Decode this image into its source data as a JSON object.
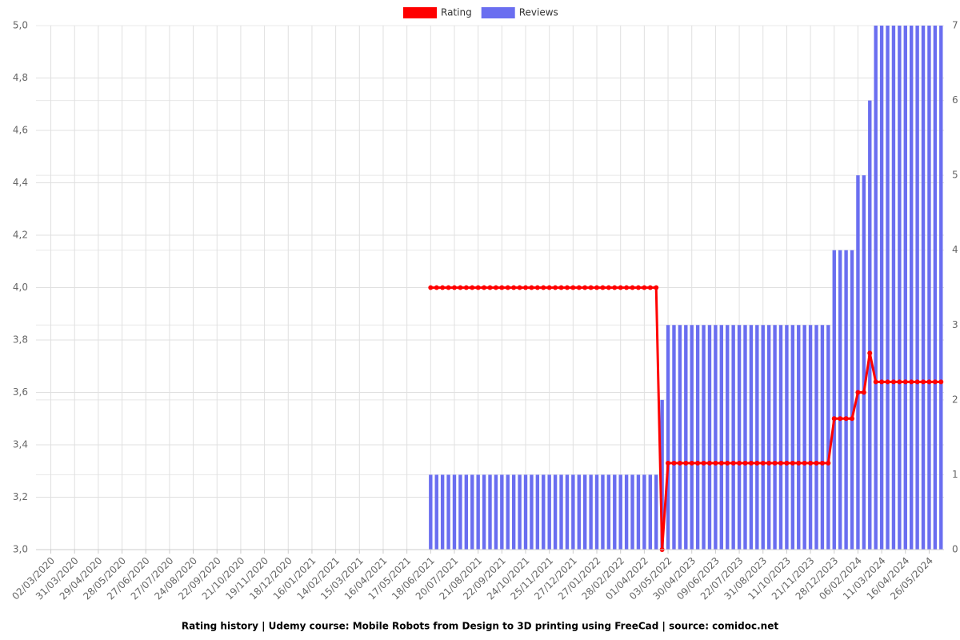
{
  "chart_data": {
    "type": "bar-line",
    "title": "Rating history | Udemy course: Mobile Robots from Design to 3D printing using FreeCad | source: comidoc.net",
    "categories": [
      null,
      null,
      "02/03/2020",
      null,
      null,
      null,
      "31/03/2020",
      null,
      null,
      null,
      "29/04/2020",
      null,
      null,
      null,
      "28/05/2020",
      null,
      null,
      null,
      "27/06/2020",
      null,
      null,
      null,
      "27/07/2020",
      null,
      null,
      null,
      "24/08/2020",
      null,
      null,
      null,
      "22/09/2020",
      null,
      null,
      null,
      "21/10/2020",
      null,
      null,
      null,
      "19/11/2020",
      null,
      null,
      null,
      "18/12/2020",
      null,
      null,
      null,
      "16/01/2021",
      null,
      null,
      null,
      "14/02/2021",
      null,
      null,
      null,
      "15/03/2021",
      null,
      null,
      null,
      "16/04/2021",
      null,
      null,
      null,
      "17/05/2021",
      null,
      null,
      null,
      "18/06/2021",
      null,
      null,
      null,
      "20/07/2021",
      null,
      null,
      null,
      "21/08/2021",
      null,
      null,
      null,
      "22/09/2021",
      null,
      null,
      null,
      "24/10/2021",
      null,
      null,
      null,
      "25/11/2021",
      null,
      null,
      null,
      "27/12/2021",
      null,
      null,
      null,
      "27/01/2022",
      null,
      null,
      null,
      "28/02/2022",
      null,
      null,
      null,
      "01/04/2022",
      null,
      null,
      null,
      "03/05/2022",
      null,
      null,
      null,
      "30/04/2023",
      null,
      null,
      null,
      "09/06/2023",
      null,
      null,
      null,
      "22/07/2023",
      null,
      null,
      null,
      "31/08/2023",
      null,
      null,
      null,
      "11/10/2023",
      null,
      null,
      null,
      "21/11/2023",
      null,
      null,
      null,
      "28/12/2023",
      null,
      null,
      null,
      "06/02/2024",
      null,
      null,
      null,
      "11/03/2024",
      null,
      null,
      null,
      "16/04/2024",
      null,
      null,
      null,
      "26/05/2024",
      null,
      null
    ],
    "series": [
      {
        "name": "Rating",
        "color": "#ff0000",
        "kind": "line",
        "values": [
          null,
          null,
          null,
          null,
          null,
          null,
          null,
          null,
          null,
          null,
          null,
          null,
          null,
          null,
          null,
          null,
          null,
          null,
          null,
          null,
          null,
          null,
          null,
          null,
          null,
          null,
          null,
          null,
          null,
          null,
          null,
          null,
          null,
          null,
          null,
          null,
          null,
          null,
          null,
          null,
          null,
          null,
          null,
          null,
          null,
          null,
          null,
          null,
          null,
          null,
          null,
          null,
          null,
          null,
          null,
          null,
          null,
          null,
          null,
          null,
          null,
          null,
          null,
          null,
          null,
          null,
          4,
          4,
          4,
          4,
          4,
          4,
          4,
          4,
          4,
          4,
          4,
          4,
          4,
          4,
          4,
          4,
          4,
          4,
          4,
          4,
          4,
          4,
          4,
          4,
          4,
          4,
          4,
          4,
          4,
          4,
          4,
          4,
          4,
          4,
          4,
          4,
          4,
          4,
          4,
          3,
          3.33,
          3.33,
          3.33,
          3.33,
          3.33,
          3.33,
          3.33,
          3.33,
          3.33,
          3.33,
          3.33,
          3.33,
          3.33,
          3.33,
          3.33,
          3.33,
          3.33,
          3.33,
          3.33,
          3.33,
          3.33,
          3.33,
          3.33,
          3.33,
          3.33,
          3.33,
          3.33,
          3.33,
          3.5,
          3.5,
          3.5,
          3.5,
          3.6,
          3.6,
          3.75,
          3.64,
          3.64,
          3.64,
          3.64,
          3.64,
          3.64,
          3.64,
          3.64,
          3.64,
          3.64,
          3.64,
          3.64
        ]
      },
      {
        "name": "Reviews",
        "color": "#6a6ef0",
        "kind": "bar",
        "axis": "y2",
        "values": [
          0,
          0,
          0,
          0,
          0,
          0,
          0,
          0,
          0,
          0,
          0,
          0,
          0,
          0,
          0,
          0,
          0,
          0,
          0,
          0,
          0,
          0,
          0,
          0,
          0,
          0,
          0,
          0,
          0,
          0,
          0,
          0,
          0,
          0,
          0,
          0,
          0,
          0,
          0,
          0,
          0,
          0,
          0,
          0,
          0,
          0,
          0,
          0,
          0,
          0,
          0,
          0,
          0,
          0,
          0,
          0,
          0,
          0,
          0,
          0,
          0,
          0,
          0,
          0,
          0,
          0,
          1,
          1,
          1,
          1,
          1,
          1,
          1,
          1,
          1,
          1,
          1,
          1,
          1,
          1,
          1,
          1,
          1,
          1,
          1,
          1,
          1,
          1,
          1,
          1,
          1,
          1,
          1,
          1,
          1,
          1,
          1,
          1,
          1,
          1,
          1,
          1,
          1,
          1,
          1,
          2,
          3,
          3,
          3,
          3,
          3,
          3,
          3,
          3,
          3,
          3,
          3,
          3,
          3,
          3,
          3,
          3,
          3,
          3,
          3,
          3,
          3,
          3,
          3,
          3,
          3,
          3,
          3,
          3,
          4,
          4,
          4,
          4,
          5,
          5,
          6,
          7,
          7,
          7,
          7,
          7,
          7,
          7,
          7,
          7,
          7,
          7,
          7
        ]
      }
    ],
    "ylim": [
      3,
      5
    ],
    "yticks": [
      {
        "value": 3,
        "label": "3,0"
      },
      {
        "value": 3.2,
        "label": "3,2"
      },
      {
        "value": 3.4,
        "label": "3,4"
      },
      {
        "value": 3.6,
        "label": "3,6"
      },
      {
        "value": 3.8,
        "label": "3,8"
      },
      {
        "value": 4,
        "label": "4,0"
      },
      {
        "value": 4.2,
        "label": "4,2"
      },
      {
        "value": 4.4,
        "label": "4,4"
      },
      {
        "value": 4.6,
        "label": "4,6"
      },
      {
        "value": 4.8,
        "label": "4,8"
      },
      {
        "value": 5,
        "label": "5,0"
      }
    ],
    "y2lim": [
      0,
      7
    ],
    "y2ticks": [
      0,
      1,
      2,
      3,
      4,
      5,
      6,
      7
    ],
    "grid": true,
    "legend": "top"
  }
}
